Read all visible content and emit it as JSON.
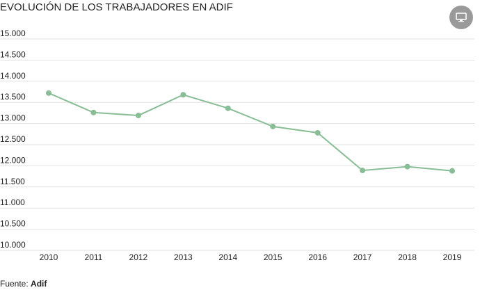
{
  "chart_data": {
    "type": "line",
    "title": "EVOLUCIÓN DE LOS TRABAJADORES EN ADIF",
    "xlabel": "",
    "ylabel": "",
    "categories": [
      "2010",
      "2011",
      "2012",
      "2013",
      "2014",
      "2015",
      "2016",
      "2017",
      "2018",
      "2019"
    ],
    "series": [
      {
        "values": [
          13720,
          13260,
          13190,
          13680,
          13360,
          12930,
          12780,
          11890,
          11980,
          11880
        ],
        "color": "#88bd95"
      }
    ],
    "ylim": [
      10000,
      15000
    ],
    "yticks": [
      10000,
      10500,
      11000,
      11500,
      12000,
      12500,
      13000,
      13500,
      14000,
      14500,
      15000
    ],
    "ytick_labels": [
      "10.000",
      "10.500",
      "11.000",
      "11.500",
      "12.000",
      "12.500",
      "13.000",
      "13.500",
      "14.000",
      "14.500",
      "15.000"
    ],
    "grid": true,
    "legend": "none"
  },
  "source": {
    "prefix": "Fuente: ",
    "name": "Adif"
  },
  "fab": {
    "icon": "monitor-icon",
    "color": "#9a9a9a"
  }
}
